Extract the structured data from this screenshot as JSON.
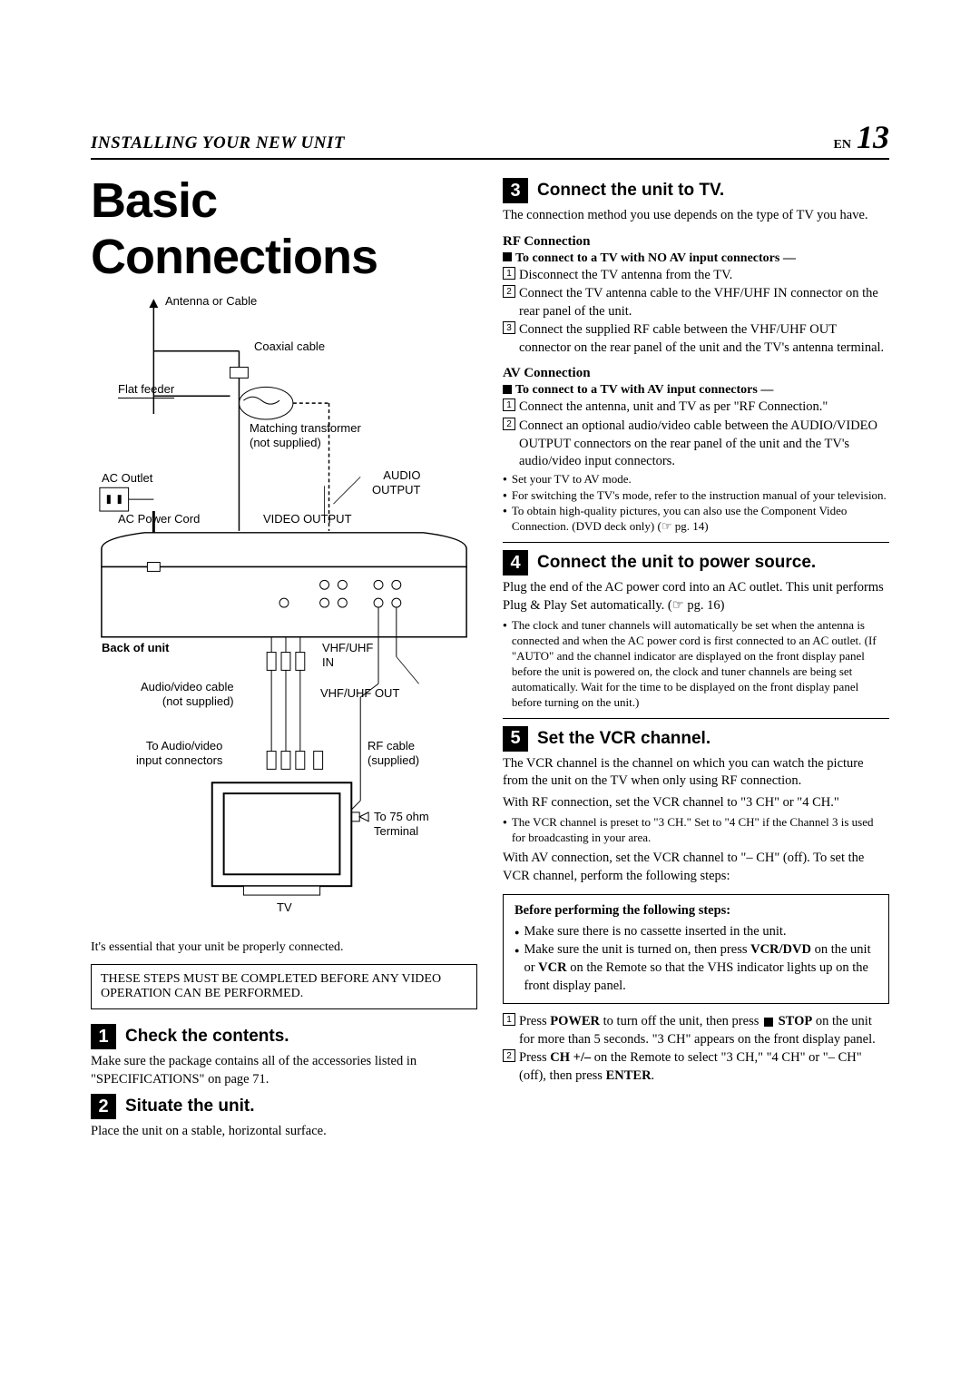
{
  "header": {
    "section": "INSTALLING YOUR NEW UNIT",
    "lang": "EN",
    "page": "13"
  },
  "main_title": "Basic Connections",
  "diagram": {
    "antenna": "Antenna or Cable",
    "coax": "Coaxial cable",
    "flat": "Flat feeder",
    "transformer": "Matching transformer\n(not supplied)",
    "ac_outlet": "AC Outlet",
    "ac_cord": "AC Power Cord",
    "audio_out": "AUDIO\nOUTPUT",
    "video_out": "VIDEO OUTPUT",
    "back": "Back of unit",
    "vhf_in": "VHF/UHF\nIN",
    "av_cable": "Audio/video cable\n(not supplied)",
    "vhf_out": "VHF/UHF OUT",
    "to_av": "To Audio/video\ninput connectors",
    "rf_cable": "RF cable\n(supplied)",
    "to75": "To 75 ohm\nTerminal",
    "tv": "TV"
  },
  "essential": "It's essential that your unit be properly connected.",
  "warn": "THESE STEPS MUST BE COMPLETED BEFORE ANY VIDEO OPERATION CAN BE PERFORMED.",
  "s1": {
    "n": "1",
    "title": "Check the contents.",
    "body": "Make sure the package contains all of the accessories listed in \"SPECIFICATIONS\" on page 71."
  },
  "s2": {
    "n": "2",
    "title": "Situate the unit.",
    "body": "Place the unit on a stable, horizontal surface."
  },
  "s3": {
    "n": "3",
    "title": "Connect the unit to TV.",
    "intro": "The connection method you use depends on the type of TV you have.",
    "rf_head": "RF Connection",
    "rf_sub": "To connect to a TV with NO AV input connectors —",
    "rf_items": [
      "Disconnect the TV antenna from the TV.",
      "Connect the TV antenna cable to the VHF/UHF IN connector on the rear panel of the unit.",
      "Connect the supplied RF cable between the VHF/UHF OUT connector on the rear panel of the unit and the TV's antenna terminal."
    ],
    "av_head": "AV Connection",
    "av_sub": "To connect to a TV with AV input connectors —",
    "av_items": [
      "Connect the antenna, unit and TV as per \"RF Connection.\"",
      "Connect an optional audio/video cable between the AUDIO/VIDEO OUTPUT connectors on the rear panel of the unit and the TV's audio/video input connectors."
    ],
    "av_bullets": [
      "Set your TV to AV mode.",
      "For switching the TV's mode, refer to the instruction manual of your television.",
      "To obtain high-quality pictures, you can also use the Component Video Connection. (DVD deck only) (☞ pg. 14)"
    ]
  },
  "s4": {
    "n": "4",
    "title": "Connect the unit to power source.",
    "body": "Plug the end of the AC power cord into an AC outlet. This unit performs Plug & Play Set automatically. (☞ pg. 16)",
    "bullets": [
      "The clock and tuner channels will automatically be set when the antenna is connected and when the AC power cord is first connected to an AC outlet. (If \"AUTO\" and the channel indicator are displayed on the front display panel before the unit is powered on, the clock and tuner channels are being set automatically. Wait for the time to be displayed on the front display panel before turning on the unit.)"
    ]
  },
  "s5": {
    "n": "5",
    "title": "Set the VCR channel.",
    "p1": "The VCR channel is the channel on which you can watch the picture from the unit on the TV when only using RF connection.",
    "p2": "With RF connection, set the VCR channel to \"3 CH\" or \"4 CH.\"",
    "b1": "The VCR channel is preset to \"3 CH.\" Set to \"4 CH\" if the Channel 3 is used for broadcasting in your area.",
    "p3": "With AV connection, set the VCR channel to \"– CH\" (off). To set the VCR channel, perform the following steps:",
    "box_head": "Before performing the following steps:",
    "box_items": [
      "Make sure there is no cassette inserted in the unit.",
      "Make sure the unit is turned on, then press <b>VCR/DVD</b> on the unit or <b>VCR</b> on the Remote so that the VHS indicator lights up on the front display panel."
    ],
    "steps": [
      "Press <b>POWER</b> to turn off the unit, then press <span class='stop-sq'></span> <b>STOP</b> on the unit for more than 5 seconds. \"3 CH\" appears on the front display panel.",
      "Press <b>CH +/–</b> on the Remote to select \"3 CH,\" \"4 CH\" or \"– CH\" (off), then press <b>ENTER</b>."
    ]
  }
}
